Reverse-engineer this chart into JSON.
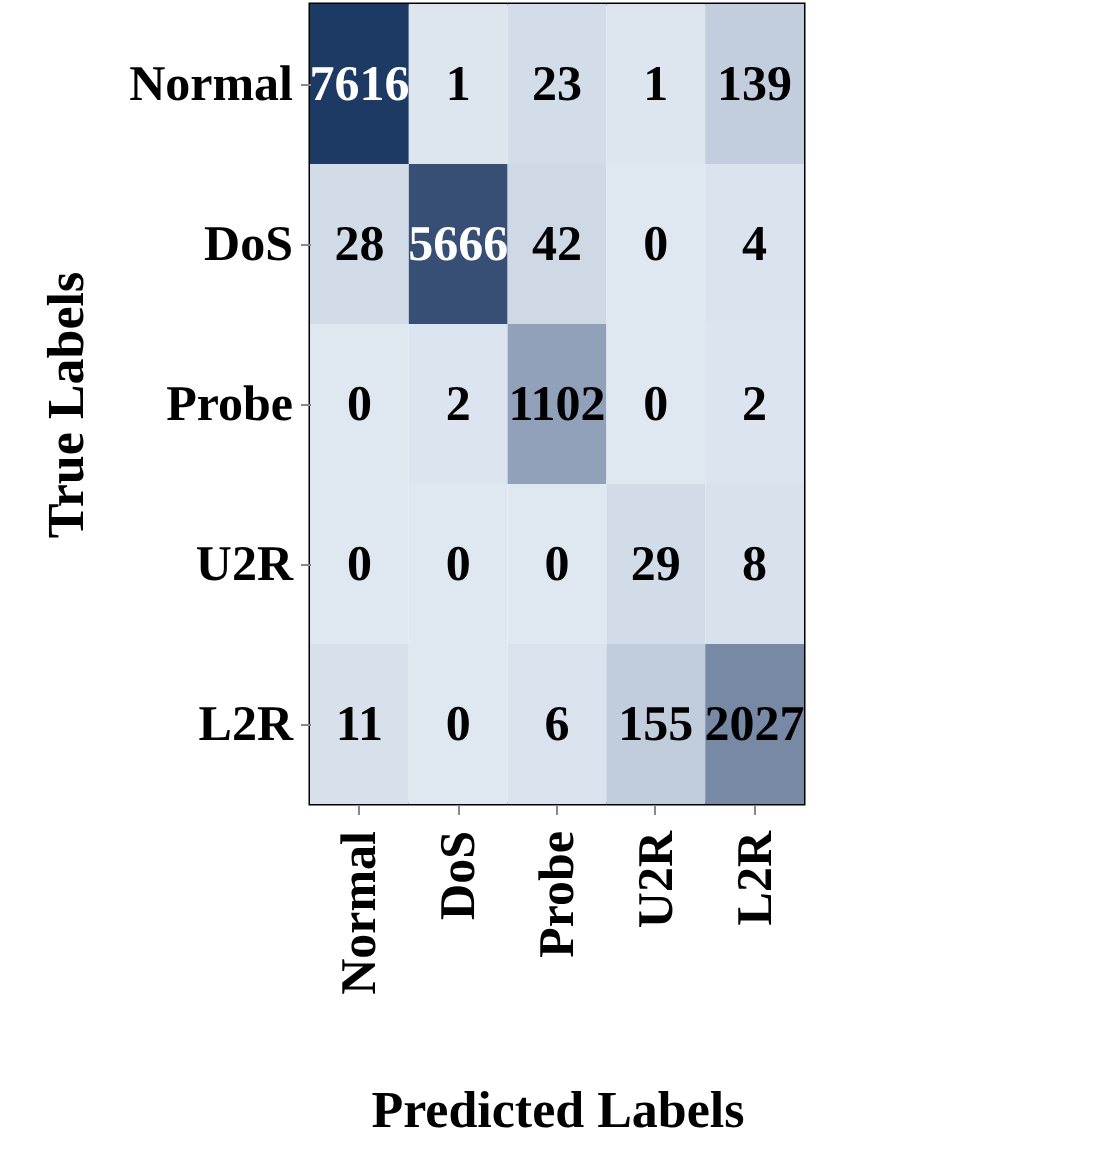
{
  "chart_data": {
    "type": "heatmap",
    "data_labels": true,
    "xlabel": "Predicted Labels",
    "ylabel": "True Labels",
    "categories": [
      "Normal",
      "DoS",
      "Probe",
      "U2R",
      "L2R"
    ],
    "y_categories": [
      "Normal",
      "DoS",
      "Probe",
      "U2R",
      "L2R"
    ],
    "cells": [
      [
        7616,
        1,
        23,
        1,
        139
      ],
      [
        28,
        5666,
        42,
        0,
        4
      ],
      [
        0,
        2,
        1102,
        0,
        2
      ],
      [
        0,
        0,
        0,
        29,
        8
      ],
      [
        11,
        0,
        6,
        155,
        2027
      ]
    ]
  }
}
